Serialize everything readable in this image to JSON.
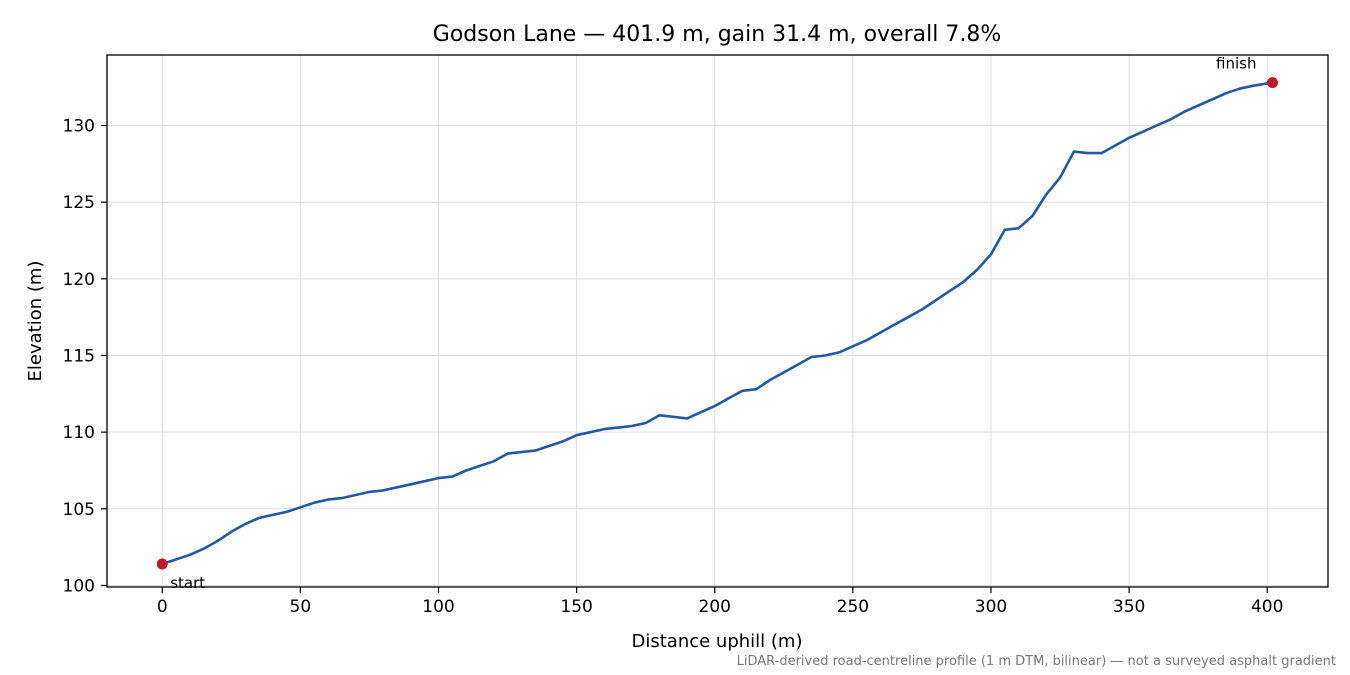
{
  "chart_data": {
    "type": "line",
    "title": "Godson Lane — 401.9 m, gain 31.4 m, overall 7.8%",
    "xlabel": "Distance uphill (m)",
    "ylabel": "Elevation (m)",
    "footnote": "LiDAR-derived road-centreline profile (1 m DTM, bilinear) — not a surveyed asphalt gradient",
    "xlim": [
      -20,
      422
    ],
    "ylim": [
      99.9,
      134.6
    ],
    "xticks": [
      0,
      50,
      100,
      150,
      200,
      250,
      300,
      350,
      400
    ],
    "yticks": [
      100,
      105,
      110,
      115,
      120,
      125,
      130
    ],
    "grid": true,
    "line_color": "#1f5aa6",
    "marker_color": "#c0192b",
    "series": [
      {
        "x": [
          0,
          5,
          10,
          15,
          20,
          25,
          30,
          35,
          40,
          45,
          50,
          55,
          60,
          65,
          70,
          75,
          80,
          85,
          90,
          95,
          100,
          105,
          110,
          115,
          120,
          125,
          130,
          135,
          140,
          145,
          150,
          155,
          160,
          165,
          170,
          175,
          180,
          185,
          190,
          195,
          200,
          205,
          210,
          215,
          220,
          225,
          230,
          235,
          240,
          245,
          250,
          255,
          260,
          265,
          270,
          275,
          280,
          285,
          290,
          295,
          300,
          305,
          310,
          315,
          320,
          325,
          330,
          335,
          340,
          345,
          350,
          355,
          360,
          365,
          370,
          375,
          380,
          385,
          390,
          395,
          401.9
        ],
        "y": [
          101.4,
          101.7,
          102.0,
          102.4,
          102.9,
          103.5,
          104.0,
          104.4,
          104.6,
          104.8,
          105.1,
          105.4,
          105.6,
          105.7,
          105.9,
          106.1,
          106.2,
          106.4,
          106.6,
          106.8,
          107.0,
          107.1,
          107.5,
          107.8,
          108.1,
          108.6,
          108.7,
          108.8,
          109.1,
          109.4,
          109.8,
          110.0,
          110.2,
          110.3,
          110.4,
          110.6,
          111.1,
          111.0,
          110.9,
          111.3,
          111.7,
          112.2,
          112.7,
          112.8,
          113.4,
          113.9,
          114.4,
          114.9,
          115.0,
          115.2,
          115.6,
          116.0,
          116.5,
          117.0,
          117.5,
          118.0,
          118.6,
          119.2,
          119.8,
          120.6,
          121.6,
          123.2,
          123.3,
          124.1,
          125.5,
          126.6,
          128.3,
          128.2,
          128.2,
          128.7,
          129.2,
          129.6,
          130.0,
          130.4,
          130.9,
          131.3,
          131.7,
          132.1,
          132.4,
          132.6,
          132.8
        ]
      }
    ],
    "annotations": [
      {
        "label": "start",
        "x": 0,
        "y": 101.4
      },
      {
        "label": "finish",
        "x": 401.9,
        "y": 132.8
      }
    ]
  }
}
